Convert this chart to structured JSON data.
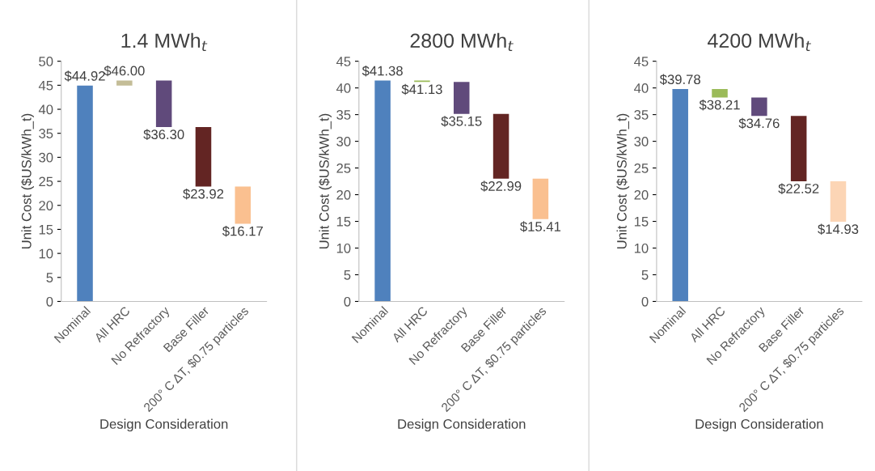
{
  "chart_data": [
    {
      "type": "bar",
      "title": "1.4 MWh$_{t}$",
      "xlabel": "Design Consideration",
      "ylabel": "Unit Cost ($US/kWh_t)",
      "categories": [
        "Nominal",
        "All HRC",
        "No Refractory",
        "Base Filler",
        "200° C ΔT, $0.75 particles"
      ],
      "base": [
        0,
        44.92,
        46.0,
        36.3,
        23.92
      ],
      "values": [
        44.92,
        1.08,
        -9.7,
        -12.38,
        -7.75
      ],
      "colors": [
        "#4f81bd",
        "#c4bd97",
        "#604a7b",
        "#632523",
        "#fac090"
      ],
      "value_labels": [
        "$44.92",
        "$46.00",
        "$36.30",
        "$23.92",
        "$16.17"
      ],
      "ylim": [
        0,
        50
      ],
      "yticks": [
        0,
        5,
        10,
        15,
        20,
        25,
        30,
        35,
        40,
        45,
        50
      ],
      "grid": false,
      "legend": false
    },
    {
      "type": "bar",
      "title": "2800 MWh$_{t}$",
      "xlabel": "Design Consideration",
      "ylabel": "Unit Cost ($US/kWh_t)",
      "categories": [
        "Nominal",
        "All HRC",
        "No Refractory",
        "Base Filler",
        "200° C ΔT, $0.75 particles"
      ],
      "base": [
        0,
        41.38,
        41.13,
        35.15,
        22.99
      ],
      "values": [
        41.38,
        -0.25,
        -5.98,
        -12.16,
        -7.58
      ],
      "colors": [
        "#4f81bd",
        "#9bbb59",
        "#604a7b",
        "#632523",
        "#fac090"
      ],
      "value_labels": [
        "$41.38",
        "$41.13",
        "$35.15",
        "$22.99",
        "$15.41"
      ],
      "ylim": [
        0,
        45
      ],
      "yticks": [
        0,
        5,
        10,
        15,
        20,
        25,
        30,
        35,
        40,
        45
      ],
      "grid": false,
      "legend": false
    },
    {
      "type": "bar",
      "title": "4200 MWh$_{t}$",
      "xlabel": "Design Consideration",
      "ylabel": "Unit Cost ($US/kWh_t)",
      "categories": [
        "Nominal",
        "All HRC",
        "No Refractory",
        "Base Filler",
        "200° C ΔT, $0.75 particles"
      ],
      "base": [
        0,
        39.78,
        38.21,
        34.76,
        22.52
      ],
      "values": [
        39.78,
        -1.57,
        -3.45,
        -12.24,
        -7.59
      ],
      "colors": [
        "#4f81bd",
        "#9bbb59",
        "#604a7b",
        "#632523",
        "#fcd5b5"
      ],
      "value_labels": [
        "$39.78",
        "$38.21",
        "$34.76",
        "$22.52",
        "$14.93"
      ],
      "ylim": [
        0,
        45
      ],
      "yticks": [
        0,
        5,
        10,
        15,
        20,
        25,
        30,
        35,
        40,
        45
      ],
      "grid": false,
      "legend": false
    }
  ]
}
